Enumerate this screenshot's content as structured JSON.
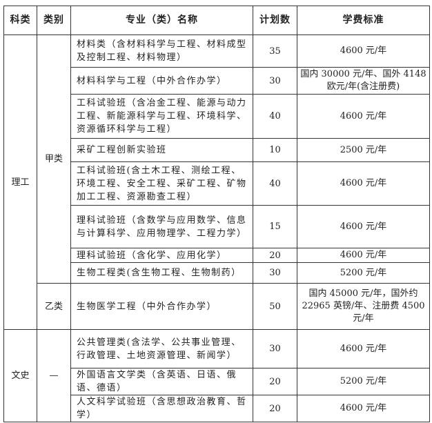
{
  "headers": {
    "subject": "科类",
    "category": "类别",
    "major": "专业（类）名称",
    "plan": "计划数",
    "fee": "学费标准"
  },
  "groups": {
    "science": "理工",
    "arts": "文史",
    "jia": "甲类",
    "yi": "乙类",
    "dash": "—"
  },
  "rows": [
    {
      "major": "材料类（含材料科学与工程、材料成型及控制工程、材料物理）",
      "plan": "35",
      "fee": "4600 元/年"
    },
    {
      "major": "材料科学与工程（中外合作办学）",
      "plan": "30",
      "fee": "国内 30000 元/年、国外 4148 欧元/年(含注册费)"
    },
    {
      "major": "工科试验班（含冶金工程、能源与动力工程、新能源科学与工程、环境科学、资源循环科学与工程）",
      "plan": "40",
      "fee": "4600 元/年"
    },
    {
      "major": "采矿工程创新实验班",
      "plan": "10",
      "fee": "2500 元/年"
    },
    {
      "major": "工科试验班(含土木工程、测绘工程、环境工程、安全工程、采矿工程、矿物加工工程、资源勘查工程）",
      "plan": "40",
      "fee": "4600 元/年"
    },
    {
      "major": "理科试验班（含数学与应用数学、信息与计算科学、应用物理学、工程力学）",
      "plan": "15",
      "fee": "4600 元/年"
    },
    {
      "major": "理科试验班（含化学、应用化学）",
      "plan": "20",
      "fee": "4600 元/年"
    },
    {
      "major": "生物工程类(含生物工程、生物制药）",
      "plan": "30",
      "fee": "5200 元/年"
    },
    {
      "major": "生物医学工程（中外合作办学）",
      "plan": "50",
      "fee": "国内 45000 元/年，国外约 22965 英镑/年、注册费 4500 元/年"
    },
    {
      "major": "公共管理类(含法学、公共事业管理、行政管理、土地资源管理、新闻学）",
      "plan": "30",
      "fee": "4600 元/年"
    },
    {
      "major": "外国语言文学类（含英语、日语、俄语、德语）",
      "plan": "20",
      "fee": "5200 元/年"
    },
    {
      "major": "人文科学试验班（含思想政治教育、哲学）",
      "plan": "20",
      "fee": "4600 元/年"
    }
  ]
}
